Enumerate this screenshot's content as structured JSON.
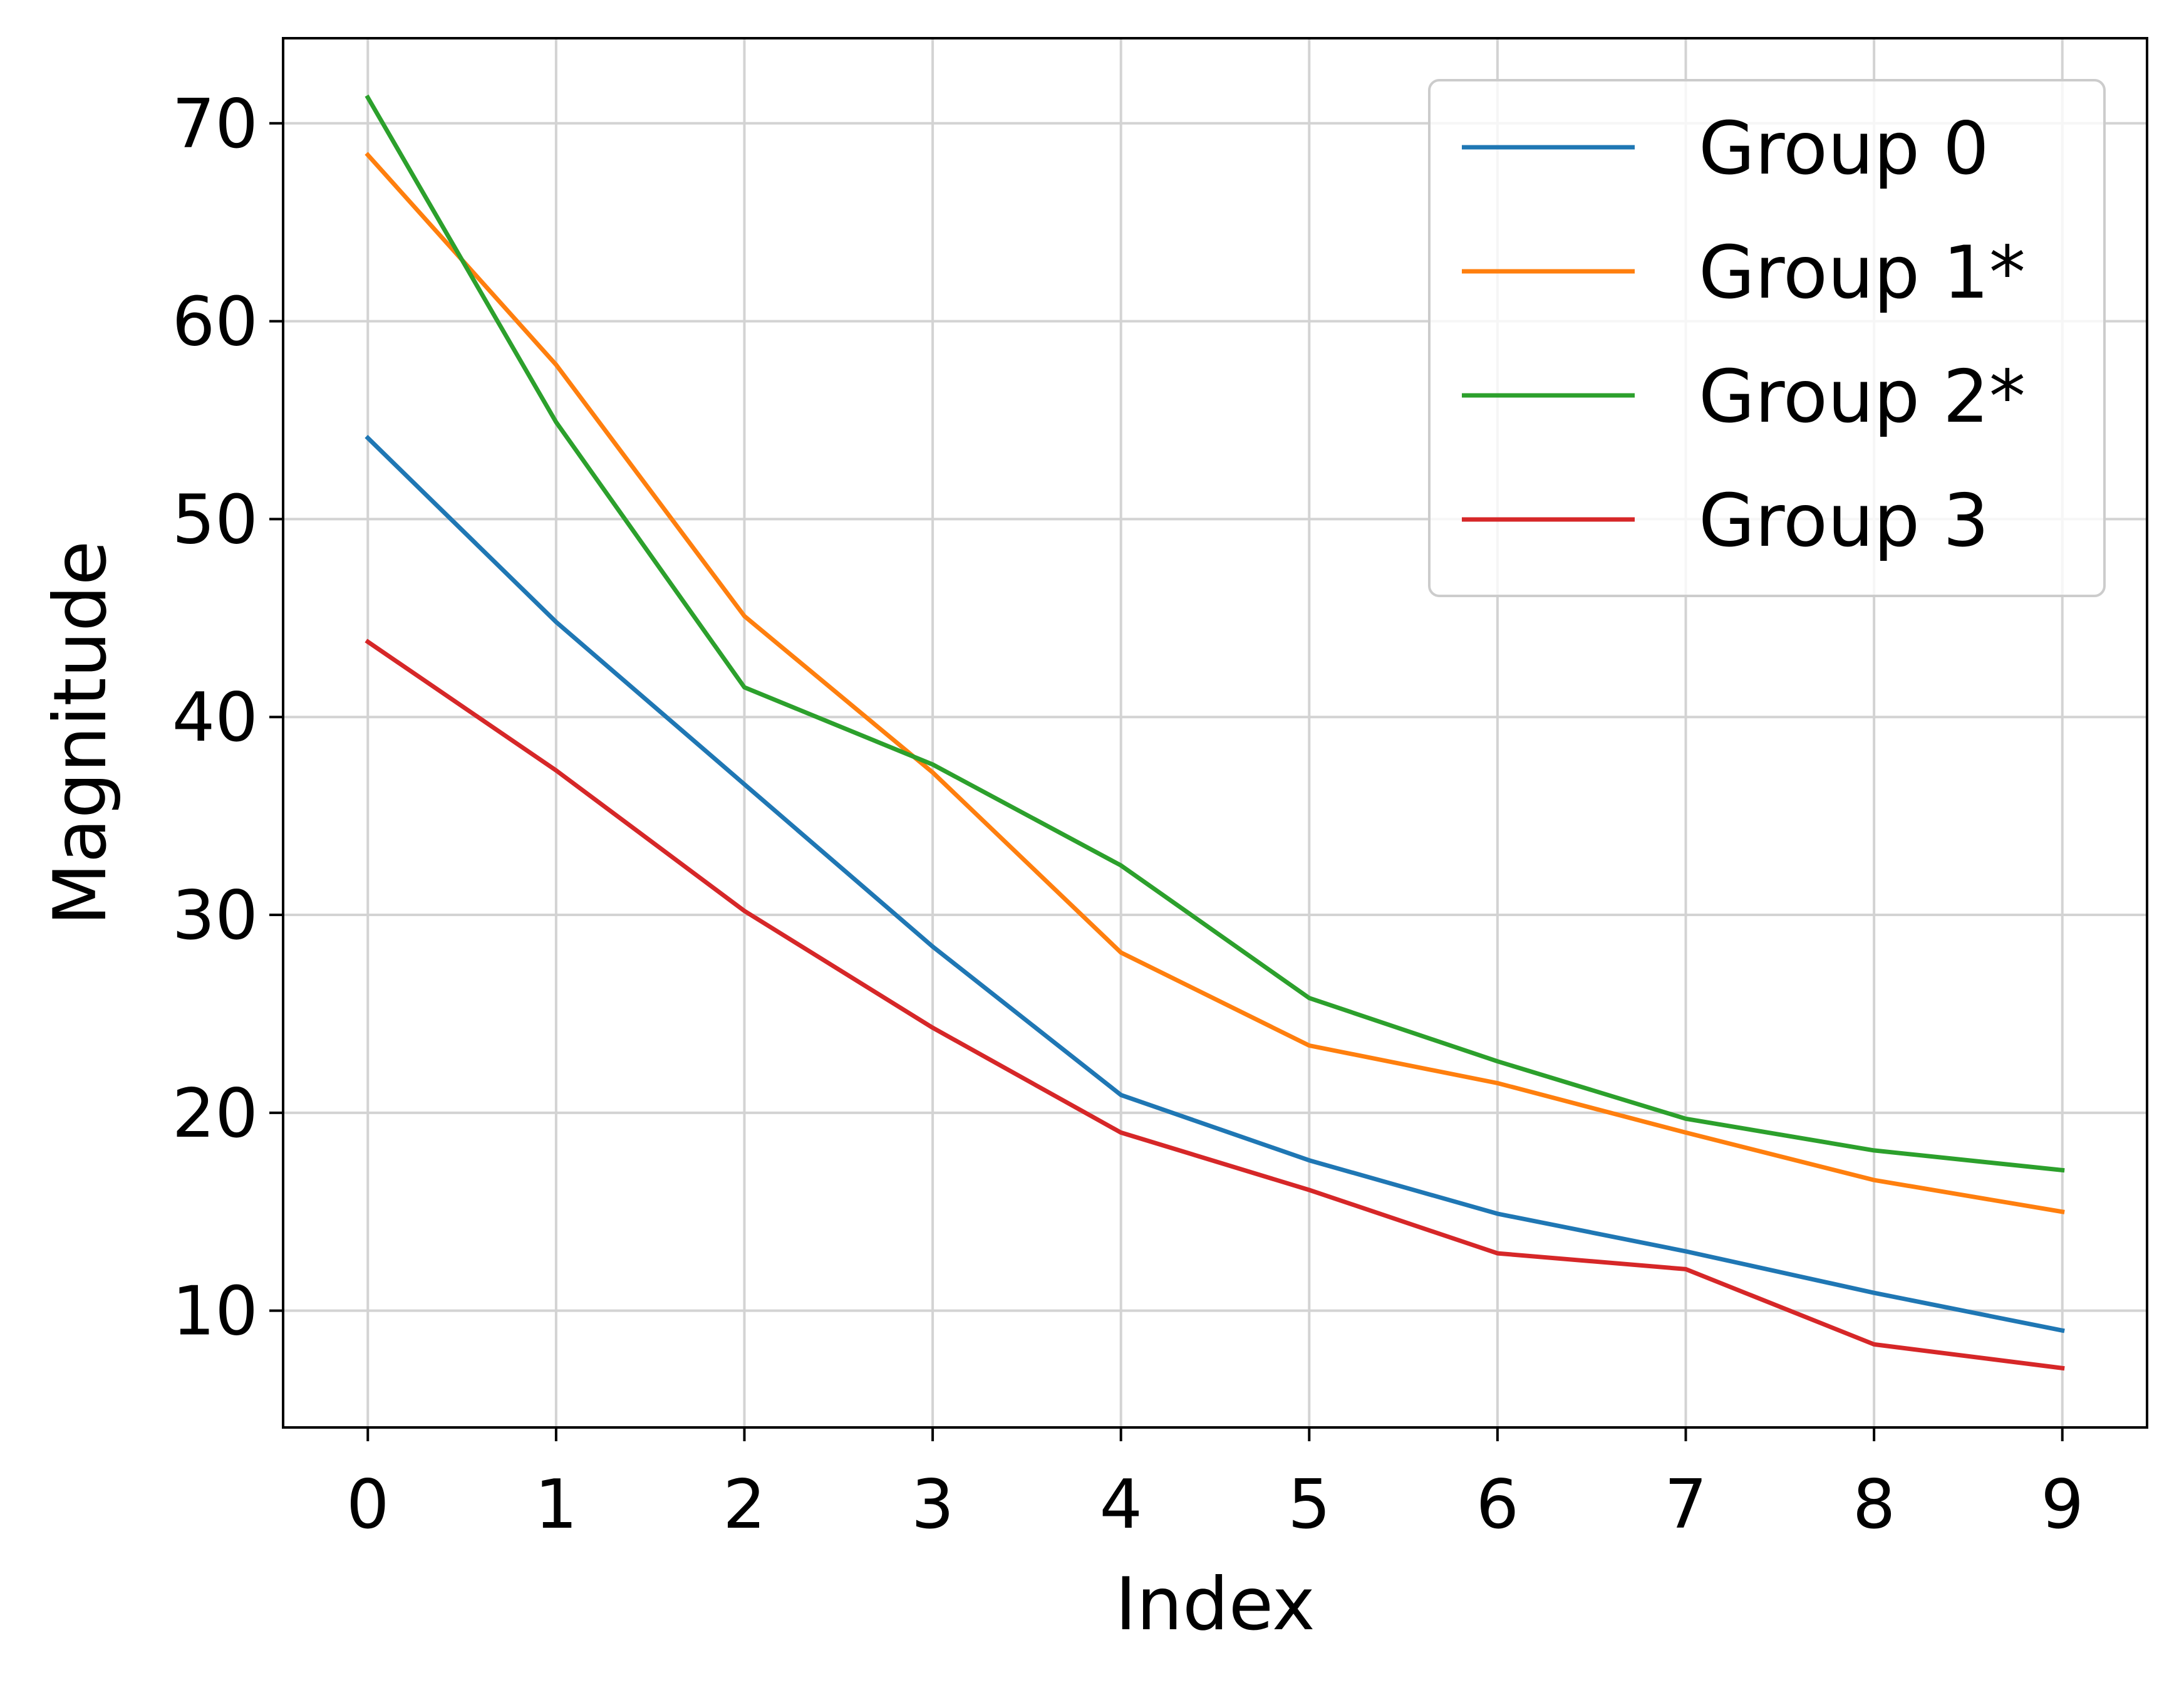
{
  "chart_data": {
    "type": "line",
    "title": "",
    "xlabel": "Index",
    "ylabel": "Magnitude",
    "x": [
      0,
      1,
      2,
      3,
      4,
      5,
      6,
      7,
      8,
      9
    ],
    "xticks": [
      "0",
      "1",
      "2",
      "3",
      "4",
      "5",
      "6",
      "7",
      "8",
      "9"
    ],
    "yticks": [
      "10",
      "20",
      "30",
      "40",
      "50",
      "60",
      "70"
    ],
    "xlim": [
      -0.45,
      9.45
    ],
    "ylim": [
      4.1,
      74.3
    ],
    "grid": true,
    "legend_position": "top-right",
    "series": [
      {
        "name": "Group 0",
        "color": "#1f77b4",
        "values": [
          54.1,
          44.8,
          36.6,
          28.4,
          20.9,
          17.6,
          14.9,
          13.0,
          10.9,
          9.0
        ]
      },
      {
        "name": "Group 1*",
        "color": "#ff7f0e",
        "values": [
          68.4,
          57.8,
          45.1,
          37.2,
          28.1,
          23.4,
          21.5,
          19.0,
          16.6,
          15.0
        ]
      },
      {
        "name": "Group 2*",
        "color": "#2ca02c",
        "values": [
          71.3,
          54.9,
          41.5,
          37.6,
          32.5,
          25.8,
          22.6,
          19.7,
          18.1,
          17.1
        ]
      },
      {
        "name": "Group 3",
        "color": "#d62728",
        "values": [
          43.8,
          37.3,
          30.2,
          24.3,
          19.0,
          16.1,
          12.9,
          12.1,
          8.3,
          7.1
        ]
      }
    ]
  }
}
